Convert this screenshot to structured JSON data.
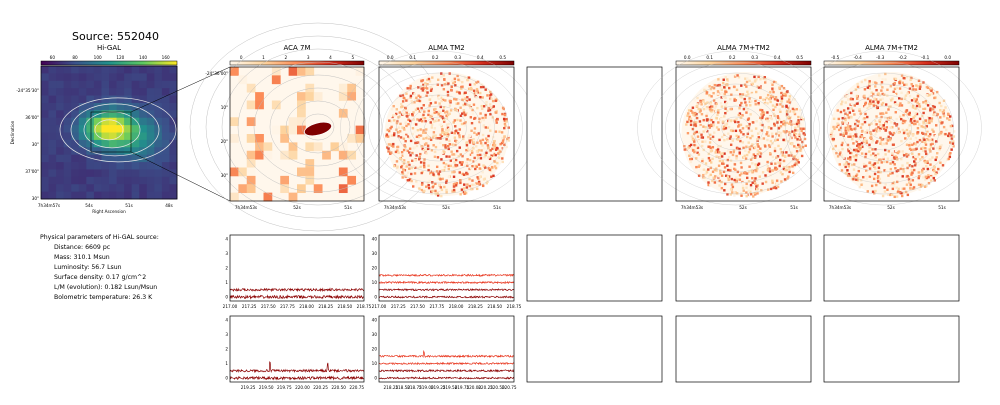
{
  "title": "Source: 552040",
  "colors": {
    "ylorrd_start": "#ffffcc",
    "orrd_dark": "#7f0000",
    "spectrum_dark": "#8b0000",
    "spectrum_light": "#e8341c",
    "viridis_peak": "#fde725",
    "contour": "#aaaaaa"
  },
  "params": {
    "heading": "Physical parameters of Hi-GAL source:",
    "lines": [
      "Distance: 6609 pc",
      "Mass: 310.1 Msun",
      "Luminosity: 56.7 Lsun",
      "Surface density: 0.17 g/cm^2",
      "L/M (evolution): 0.182 Lsun/Msun",
      "Bolometric temperature: 26.3 K"
    ]
  },
  "chart_data": [
    {
      "type": "heatmap",
      "title": "Hi-GAL",
      "colormap": "viridis",
      "colorbar_ticks": [
        "60",
        "80",
        "100",
        "120",
        "140",
        "160"
      ],
      "xlabel": "Right Ascension",
      "ylabel": "Declination",
      "xticks": [
        "7h34m57s",
        "54s",
        "51s",
        "48s"
      ],
      "yticks": [
        "-24°35'30\"",
        "36'00\"",
        "30\"",
        "37'00\"",
        "30\""
      ],
      "peak": "bright compact source near center"
    },
    {
      "type": "heatmap",
      "title": "ACA 7M",
      "colormap": "OrRd",
      "colorbar_ticks": [
        "0",
        "1",
        "2",
        "3",
        "4",
        "5"
      ],
      "xticks": [
        "7h34m53s",
        "52s",
        "51s"
      ],
      "yticks": [
        "-24°36'00\"",
        "10\"",
        "20\"",
        "30\""
      ]
    },
    {
      "type": "heatmap",
      "title": "ALMA TM2",
      "colormap": "OrRd",
      "colorbar_ticks": [
        "0.0",
        "0.1",
        "0.2",
        "0.3",
        "0.4",
        "0.5"
      ],
      "xticks": [
        "7h34m53s",
        "52s",
        "51s"
      ]
    },
    {
      "type": "heatmap",
      "title": "",
      "empty": true
    },
    {
      "type": "heatmap",
      "title": "ALMA 7M+TM2",
      "colormap": "OrRd",
      "colorbar_ticks": [
        "0.0",
        "0.1",
        "0.2",
        "0.3",
        "0.4",
        "0.5"
      ],
      "xticks": [
        "7h34m53s",
        "52s",
        "51s"
      ]
    },
    {
      "type": "heatmap",
      "title": "ALMA 7M+TM2",
      "colormap": "OrRd",
      "colorbar_ticks": [
        "-0.5",
        "-0.4",
        "-0.3",
        "-0.2",
        "-0.1",
        "0.0"
      ],
      "xticks": [
        "7h34m53s",
        "52s",
        "51s"
      ]
    },
    {
      "type": "line",
      "title": "",
      "xlim": [
        217.0,
        218.75
      ],
      "ylim": [
        0,
        4
      ],
      "xticks": [
        "217.00",
        "217.25",
        "217.50",
        "217.75",
        "218.00",
        "218.25",
        "218.50",
        "218.75"
      ],
      "yticks": [
        "0",
        "1",
        "2",
        "3",
        "4"
      ],
      "series": [
        {
          "baseline": 0.0,
          "noise": 0.1,
          "color": "dark"
        },
        {
          "baseline": 0.5,
          "noise": 0.08,
          "color": "dark"
        }
      ]
    },
    {
      "type": "line",
      "title": "",
      "xlim": [
        217.0,
        218.75
      ],
      "ylim": [
        0,
        40
      ],
      "xticks": [
        "217.00",
        "217.25",
        "217.50",
        "217.75",
        "218.00",
        "218.25",
        "218.50",
        "218.75"
      ],
      "yticks": [
        "0",
        "10",
        "20",
        "30",
        "40"
      ],
      "series": [
        {
          "baseline": 0,
          "noise": 0.6,
          "color": "dark"
        },
        {
          "baseline": 5,
          "noise": 0.6,
          "color": "dark"
        },
        {
          "baseline": 10,
          "noise": 0.6,
          "color": "light"
        },
        {
          "baseline": 15,
          "noise": 0.6,
          "color": "light"
        }
      ]
    },
    {
      "type": "line",
      "title": "",
      "xlim": [
        219.0,
        220.85
      ],
      "ylim": [
        0,
        4
      ],
      "xticks": [
        "219.25",
        "219.50",
        "219.75",
        "220.00",
        "220.25",
        "220.50",
        "220.75"
      ],
      "yticks": [
        "0",
        "1",
        "2",
        "3",
        "4"
      ],
      "series": [
        {
          "baseline": 0.0,
          "noise": 0.1,
          "color": "dark"
        },
        {
          "baseline": 0.5,
          "noise": 0.08,
          "color": "dark",
          "peaks": [
            [
              219.55,
              0.6
            ],
            [
              220.35,
              0.5
            ]
          ]
        }
      ]
    },
    {
      "type": "line",
      "title": "",
      "xlim": [
        218.0,
        220.85
      ],
      "ylim": [
        0,
        40
      ],
      "xticks": [
        "218.25",
        "218.50",
        "218.75",
        "219.00",
        "219.25",
        "219.50",
        "219.75",
        "220.00",
        "220.25",
        "220.50",
        "220.75"
      ],
      "yticks": [
        "0",
        "10",
        "20",
        "30",
        "40"
      ],
      "series": [
        {
          "baseline": 0,
          "noise": 0.6,
          "color": "dark"
        },
        {
          "baseline": 5,
          "noise": 0.6,
          "color": "dark"
        },
        {
          "baseline": 10,
          "noise": 0.6,
          "color": "light"
        },
        {
          "baseline": 15,
          "noise": 0.6,
          "color": "light",
          "peaks": [
            [
              218.95,
              3
            ]
          ]
        }
      ]
    }
  ]
}
